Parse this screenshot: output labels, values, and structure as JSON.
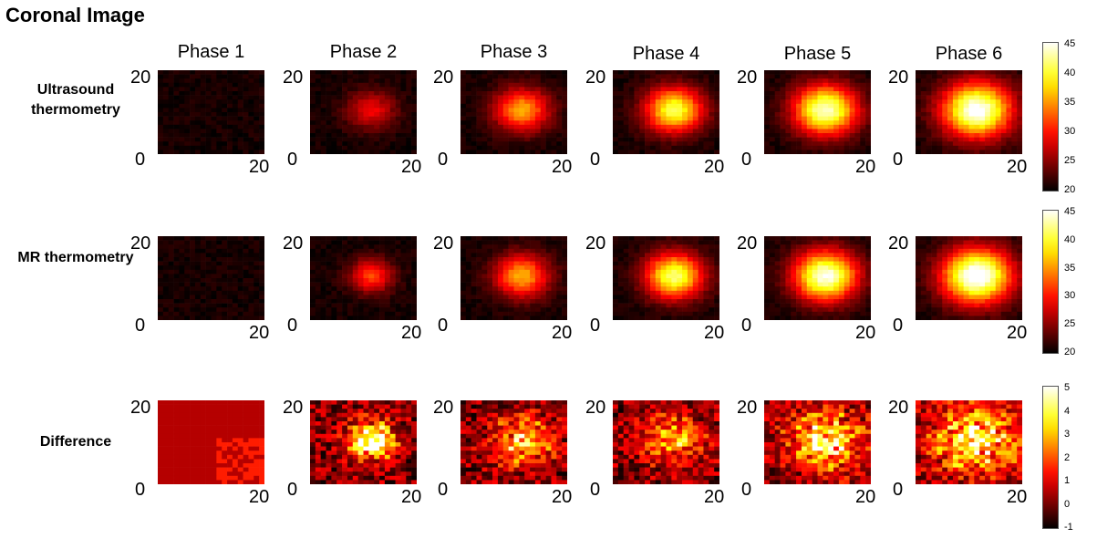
{
  "figure": {
    "title": "Coronal Image",
    "phases": [
      "Phase 1",
      "Phase 2",
      "Phase 3",
      "Phase 4",
      "Phase 5",
      "Phase 6"
    ],
    "rows": [
      {
        "label": "Ultrasound thermometry",
        "type": "temperature",
        "peak": [
          20,
          28,
          35,
          40,
          43,
          45
        ],
        "spread": [
          4,
          3.2,
          3.6,
          3.8,
          4.2,
          4.6
        ]
      },
      {
        "label": "MR thermometry",
        "type": "temperature",
        "peak": [
          20,
          31,
          35,
          41,
          44,
          46
        ],
        "spread": [
          4,
          2.8,
          3.6,
          3.8,
          4.2,
          4.6
        ]
      },
      {
        "label": "Difference",
        "type": "difference",
        "peak": [
          1,
          5,
          3,
          2.5,
          3.5,
          3.5
        ],
        "spread": [
          4,
          3,
          4,
          4,
          5,
          6
        ]
      }
    ],
    "axis": {
      "x_min": "0",
      "x_max": "20",
      "y_min": "0",
      "y_max": "20"
    },
    "colorbars": [
      {
        "ticks": [
          "45",
          "40",
          "35",
          "30",
          "25",
          "20"
        ],
        "min": 20,
        "max": 45
      },
      {
        "ticks": [
          "45",
          "40",
          "35",
          "30",
          "25",
          "20"
        ],
        "min": 20,
        "max": 45
      },
      {
        "ticks": [
          "5",
          "4",
          "3",
          "2",
          "1",
          "0",
          "-1"
        ],
        "min": -1,
        "max": 5
      }
    ],
    "colormap": "hot"
  }
}
